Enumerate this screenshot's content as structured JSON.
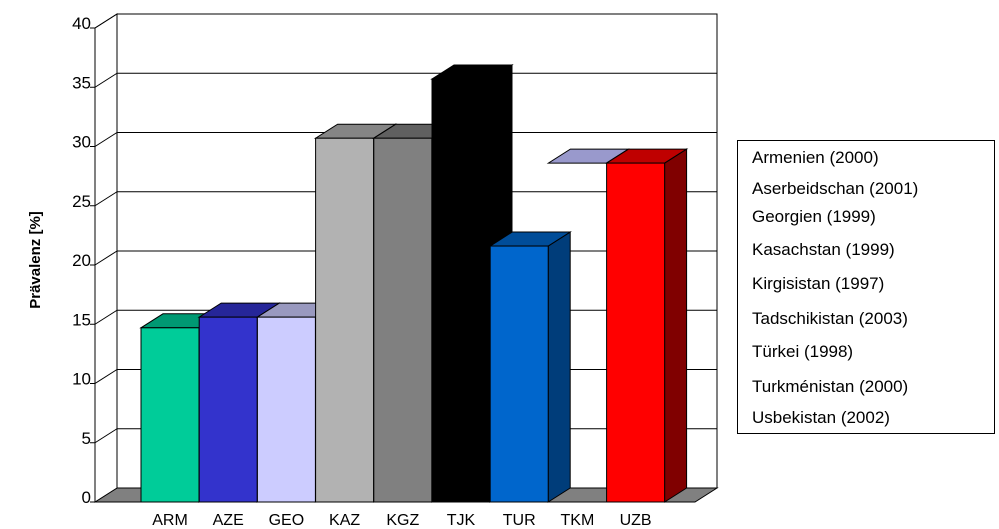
{
  "chart_data": {
    "type": "bar",
    "title": "",
    "xlabel": "",
    "ylabel": "Prävalenz [%]",
    "ylim": [
      0,
      40
    ],
    "yticks": [
      "0",
      "5",
      "10",
      "15",
      "20",
      "25",
      "30",
      "35",
      "40"
    ],
    "grid": true,
    "legend_position": "right",
    "categories": [
      "ARM",
      "AZE",
      "GEO",
      "KAZ",
      "KGZ",
      "TJK",
      "TUR",
      "TKM",
      "UZB"
    ],
    "values": [
      14.7,
      15.6,
      15.6,
      30.7,
      30.7,
      35.7,
      21.6,
      28.6,
      28.6
    ],
    "colors": [
      "#00CC99",
      "#3333CC",
      "#CCCCFF",
      "#B2B2B2",
      "#808080",
      "#000000",
      "#0066CC",
      "#9999CC",
      "#FF0000"
    ],
    "side_colors": [
      "#007A5C",
      "#1F1F7A",
      "#7A7A99",
      "#6B6B6B",
      "#4D4D4D",
      "#000000",
      "#003D7A",
      "#5C5C7A",
      "#800000"
    ],
    "top_colors": [
      "#009973",
      "#262699",
      "#9999BF",
      "#858585",
      "#606060",
      "#000000",
      "#004D99",
      "#9999CC",
      "#BF0000"
    ],
    "legend": [
      "Armenien (2000)",
      "Aserbeidschan (2001)",
      "Georgien (1999)",
      "Kasachstan (1999)",
      "Kirgisistan (1997)",
      "Tadschikistan (2003)",
      "Türkei (1998)",
      "Turkménistan (2000)",
      "Usbekistan (2002)"
    ]
  }
}
